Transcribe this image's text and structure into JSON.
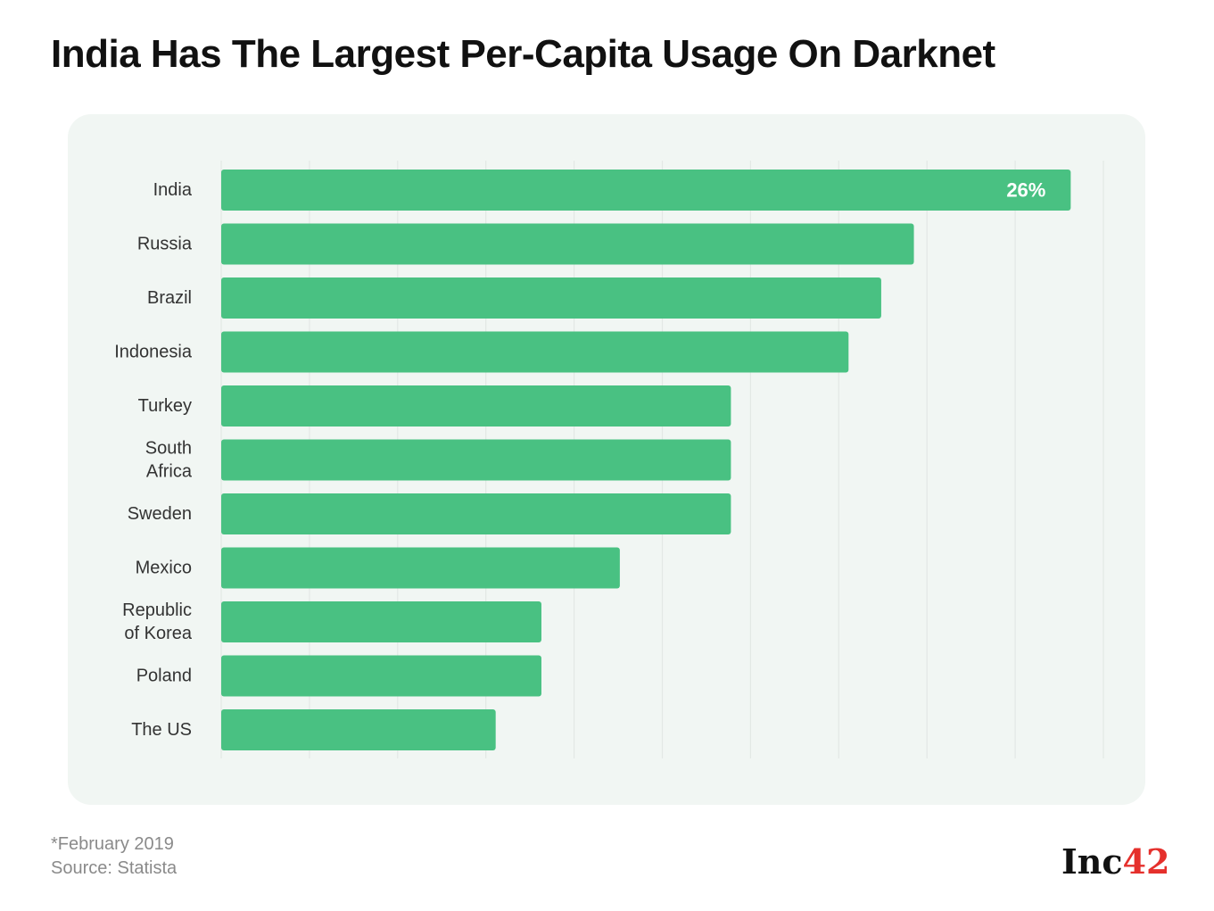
{
  "title": "India Has The Largest Per-Capita Usage On Darknet",
  "footnote": {
    "date_note": "*February 2019",
    "source": "Source: Statista"
  },
  "logo": {
    "text": "Inc",
    "number": "42",
    "text_color": "#111111",
    "number_color": "#e5302c"
  },
  "colors": {
    "bar": "#49c182",
    "panel_bg": "#f1f6f3",
    "grid": "#e3e8e5",
    "label": "#333333"
  },
  "chart_data": {
    "type": "bar",
    "orientation": "horizontal",
    "categories": [
      [
        "India"
      ],
      [
        "Russia"
      ],
      [
        "Brazil"
      ],
      [
        "Indonesia"
      ],
      [
        "Turkey"
      ],
      [
        "South",
        "Africa"
      ],
      [
        "Sweden"
      ],
      [
        "Mexico"
      ],
      [
        "Republic",
        "of Korea"
      ],
      [
        "Poland"
      ],
      [
        "The US"
      ]
    ],
    "values": [
      26,
      21.2,
      20.2,
      19.2,
      15.6,
      15.6,
      15.6,
      12.2,
      9.8,
      9.8,
      8.4
    ],
    "data_labels": [
      "26%",
      "",
      "",
      "",
      "",
      "",
      "",
      "",
      "",
      "",
      ""
    ],
    "xlim": [
      0,
      27
    ],
    "grid": true
  }
}
